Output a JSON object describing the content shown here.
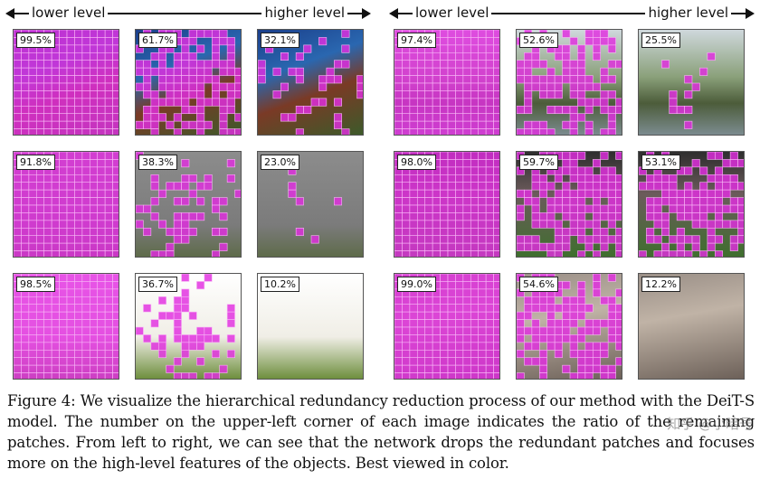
{
  "level_labels": {
    "lower": "lower level",
    "higher": "higher level"
  },
  "panels": [
    {
      "id": "coral",
      "scene": "coral",
      "values": [
        "99.5%",
        "61.7%",
        "32.1%"
      ],
      "fractions": [
        0.995,
        0.617,
        0.321
      ]
    },
    {
      "id": "house",
      "scene": "house",
      "values": [
        "97.4%",
        "52.6%",
        "25.5%"
      ],
      "fractions": [
        0.974,
        0.526,
        0.255
      ]
    },
    {
      "id": "bird",
      "scene": "bird",
      "values": [
        "91.8%",
        "38.3%",
        "23.0%"
      ],
      "fractions": [
        0.918,
        0.383,
        0.23
      ]
    },
    {
      "id": "football",
      "scene": "football",
      "values": [
        "98.0%",
        "59.7%",
        "53.1%"
      ],
      "fractions": [
        0.98,
        0.597,
        0.531
      ]
    },
    {
      "id": "dog",
      "scene": "dog",
      "values": [
        "98.5%",
        "36.7%",
        "10.2%"
      ],
      "fractions": [
        0.985,
        0.367,
        0.102
      ]
    },
    {
      "id": "cat",
      "scene": "cat",
      "values": [
        "99.0%",
        "54.6%",
        "12.2%"
      ],
      "fractions": [
        0.99,
        0.546,
        0.122
      ]
    }
  ],
  "caption": "Figure 4: We visualize the hierarchical redundancy reduction process of our method with the DeiT-S model. The number on the upper-left corner of each image indicates the ratio of the remaining patches. From left to right, we can see that the network drops the redundant patches and focuses more on the high-level features of the objects. Best viewed in color.",
  "watermark": "知乎 @小暗号",
  "colors": {
    "mask": "#e22de0"
  }
}
